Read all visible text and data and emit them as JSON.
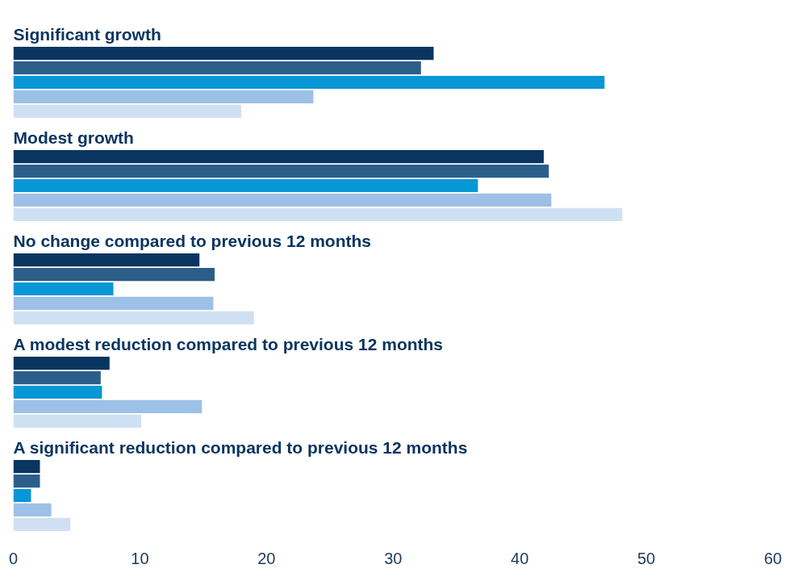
{
  "chart_data": {
    "type": "bar",
    "orientation": "horizontal",
    "categories": [
      "Significant growth",
      "Modest growth",
      "No change compared to previous 12 months",
      "A modest reduction compared to previous 12 months",
      "A significant reduction compared to previous 12 months"
    ],
    "series": [
      {
        "color": "#0a3560",
        "values": [
          33.2,
          41.9,
          14.7,
          7.6,
          2.1
        ]
      },
      {
        "color": "#2b5f8a",
        "values": [
          32.2,
          42.3,
          15.9,
          6.9,
          2.1
        ]
      },
      {
        "color": "#0797d6",
        "values": [
          46.7,
          36.7,
          7.9,
          7.0,
          1.4
        ]
      },
      {
        "color": "#9dc0e6",
        "values": [
          23.7,
          42.5,
          15.8,
          14.9,
          3.0
        ]
      },
      {
        "color": "#d0e0f3",
        "values": [
          18.0,
          48.1,
          19.0,
          10.1,
          4.5
        ]
      }
    ],
    "xlim": [
      0,
      60
    ],
    "xticks": [
      0,
      10,
      20,
      30,
      40,
      50,
      60
    ],
    "grid": false,
    "legend": false
  }
}
